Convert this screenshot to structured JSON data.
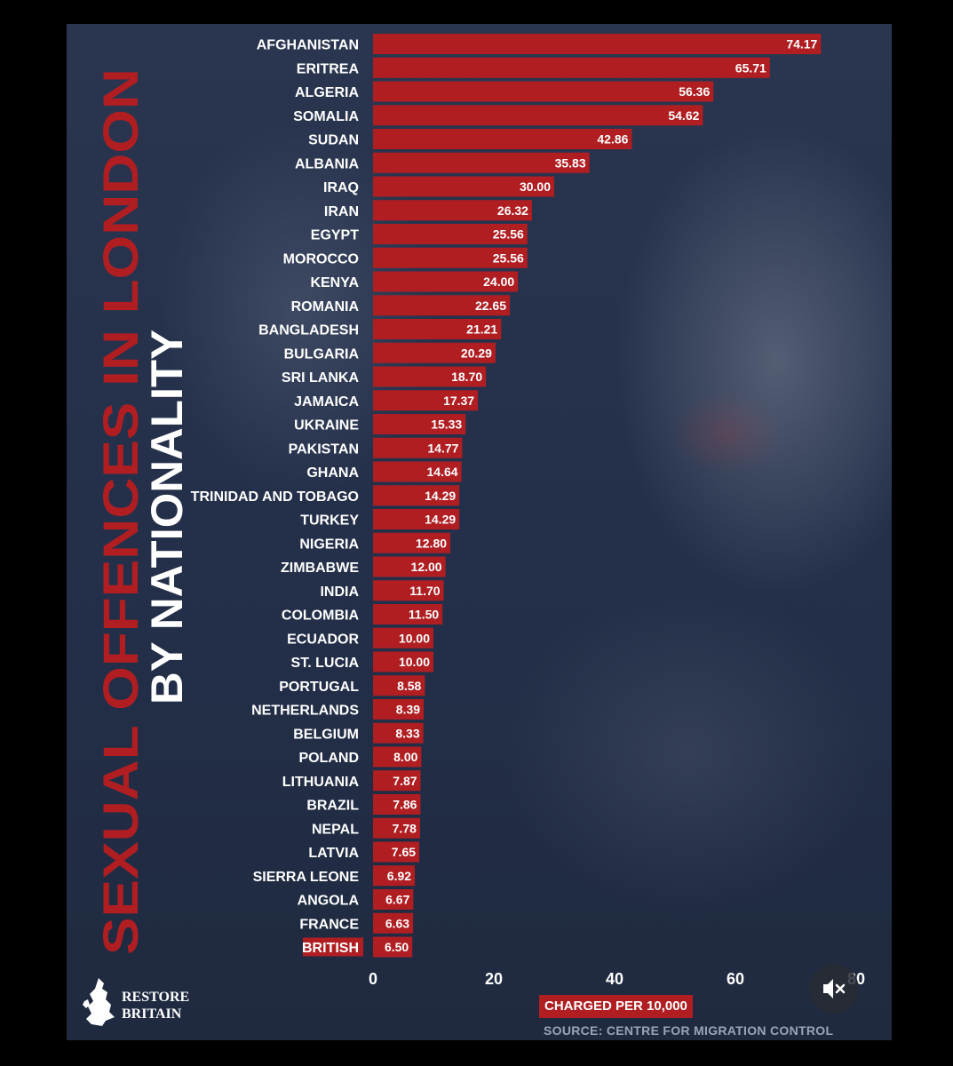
{
  "title_line1": "SEXUAL OFFENCES IN LONDON",
  "title_line2": "BY NATIONALITY",
  "brand": {
    "line1": "RESTORE",
    "line2": "BRITAIN"
  },
  "source": "SOURCE: CENTRE FOR MIGRATION CONTROL",
  "mute_icon": "speaker-muted-icon",
  "colors": {
    "bar": "#b01e22",
    "title_red": "#b01e22",
    "highlight_label": "#b01e22",
    "text": "#ffffff"
  },
  "chart_data": {
    "type": "bar",
    "orientation": "horizontal",
    "title": "SEXUAL OFFENCES IN LONDON BY NATIONALITY",
    "xlabel": "CHARGED PER 10,000",
    "ylabel": "",
    "xlim": [
      0,
      80
    ],
    "xticks": [
      "0",
      "20",
      "40",
      "60",
      "80"
    ],
    "grid": false,
    "highlight": "BRITISH",
    "categories": [
      "AFGHANISTAN",
      "ERITREA",
      "ALGERIA",
      "SOMALIA",
      "SUDAN",
      "ALBANIA",
      "IRAQ",
      "IRAN",
      "EGYPT",
      "MOROCCO",
      "KENYA",
      "ROMANIA",
      "BANGLADESH",
      "BULGARIA",
      "SRI LANKA",
      "JAMAICA",
      "UKRAINE",
      "PAKISTAN",
      "GHANA",
      "TRINIDAD AND TOBAGO",
      "TURKEY",
      "NIGERIA",
      "ZIMBABWE",
      "INDIA",
      "COLOMBIA",
      "ECUADOR",
      "ST. LUCIA",
      "PORTUGAL",
      "NETHERLANDS",
      "BELGIUM",
      "POLAND",
      "LITHUANIA",
      "BRAZIL",
      "NEPAL",
      "LATVIA",
      "SIERRA LEONE",
      "ANGOLA",
      "FRANCE",
      "BRITISH"
    ],
    "values": [
      74.17,
      65.71,
      56.36,
      54.62,
      42.86,
      35.83,
      30.0,
      26.32,
      25.56,
      25.56,
      24.0,
      22.65,
      21.21,
      20.29,
      18.7,
      17.37,
      15.33,
      14.77,
      14.64,
      14.29,
      14.29,
      12.8,
      12.0,
      11.7,
      11.5,
      10.0,
      10.0,
      8.58,
      8.39,
      8.33,
      8.0,
      7.87,
      7.86,
      7.78,
      7.65,
      6.92,
      6.67,
      6.63,
      6.5
    ],
    "value_labels": [
      "74.17",
      "65.71",
      "56.36",
      "54.62",
      "42.86",
      "35.83",
      "30.00",
      "26.32",
      "25.56",
      "25.56",
      "24.00",
      "22.65",
      "21.21",
      "20.29",
      "18.70",
      "17.37",
      "15.33",
      "14.77",
      "14.64",
      "14.29",
      "14.29",
      "12.80",
      "12.00",
      "11.70",
      "11.50",
      "10.00",
      "10.00",
      "8.58",
      "8.39",
      "8.33",
      "8.00",
      "7.87",
      "7.86",
      "7.78",
      "7.65",
      "6.92",
      "6.67",
      "6.63",
      "6.50"
    ]
  }
}
